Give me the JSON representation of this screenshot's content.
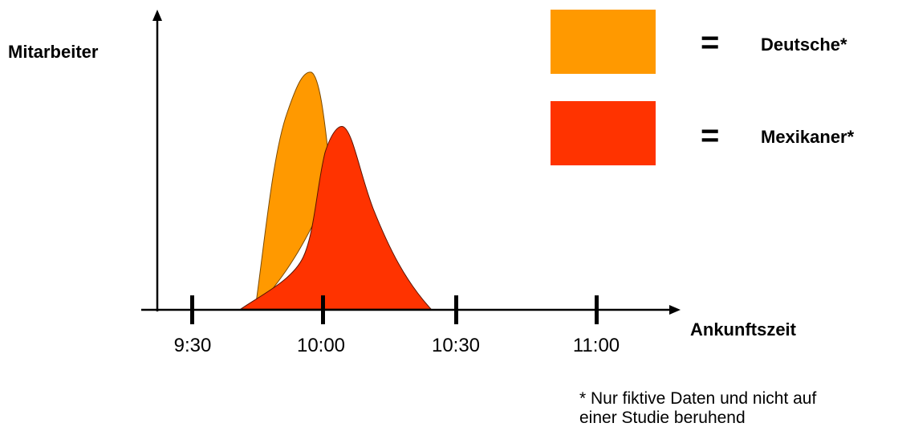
{
  "chart_data": {
    "type": "area",
    "ylabel": "Mitarbeiter",
    "xlabel": "Ankunftszeit",
    "x_ticks": [
      "9:30",
      "10:00",
      "10:30",
      "11:00"
    ],
    "series": [
      {
        "name": "Deutsche*",
        "color": "#FF9900",
        "x": [
          "9:45",
          "9:50",
          "9:55",
          "9:58",
          "10:00",
          "10:02",
          "10:05"
        ],
        "y": [
          0.05,
          0.35,
          0.82,
          1.0,
          0.85,
          0.45,
          0.2
        ]
      },
      {
        "name": "Mexikaner*",
        "color": "#FF3300",
        "x": [
          "9:42",
          "9:50",
          "9:57",
          "10:00",
          "10:04",
          "10:08",
          "10:15",
          "10:23"
        ],
        "y": [
          0.0,
          0.08,
          0.32,
          0.6,
          0.78,
          0.62,
          0.22,
          0.0
        ]
      }
    ]
  },
  "legend": {
    "equals_sign": "="
  },
  "footnote": {
    "line1": "* Nur fiktive Daten und nicht auf",
    "line2": "einer Studie beruhend"
  }
}
